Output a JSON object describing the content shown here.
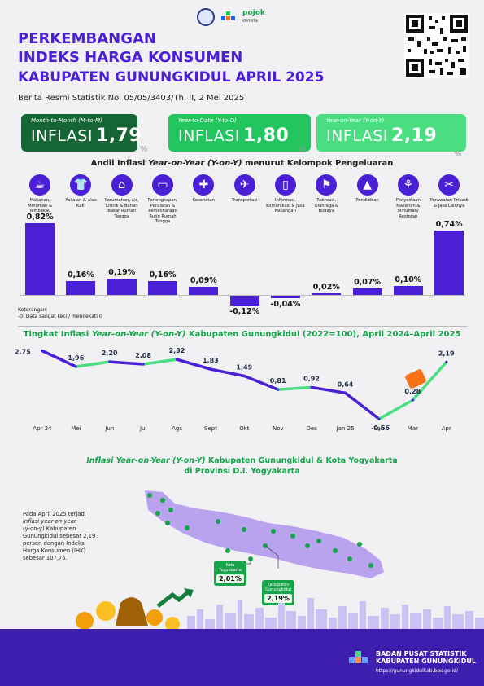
{
  "header": {
    "title_line1": "PERKEMBANGAN",
    "title_line2": "INDEKS HARGA KONSUMEN",
    "title_line3": "KABUPATEN GUNUNGKIDUL APRIL 2025",
    "subline": "Berita Resmi Statistik No. 05/05/3403/Th. II, 2 Mei 2025",
    "logo_pojok": "pojok",
    "logo_pojok_sub": "STATISTIK"
  },
  "cards": [
    {
      "caption": "Month-to-Month (M-to-M)",
      "word": "INFLASI",
      "value": "1,79",
      "color": "#166534"
    },
    {
      "caption": "Year-to-Date (Y-to-D)",
      "word": "INFLASI",
      "value": "1,80",
      "color": "#22c55e"
    },
    {
      "caption": "Year-on-Year (Y-on-Y)",
      "word": "INFLASI",
      "value": "2,19",
      "color": "#4ade80"
    }
  ],
  "pct_sign": "%",
  "andil": {
    "title_pre": "Andil Inflasi ",
    "title_italic": "Year-on-Year (Y-on-Y)",
    "title_post": " menurut Kelompok Pengeluaran",
    "note_line1": "Keterangan:",
    "note_line2": "-0: Data sangat kecil/ mendekati 0",
    "chart_data": {
      "type": "bar",
      "categories": [
        "Makanan, Minuman & Tembakau",
        "Pakaian & Alas Kaki",
        "Perumahan, Air, Listrik & Bahan Bakar Rumah Tangga",
        "Perlengkapan, Peralatan & Pemeliharaan Rutin Rumah Tangga",
        "Kesehatan",
        "Transportasi",
        "Informasi, Komunikasi & Jasa Keuangan",
        "Rekreasi, Olahraga & Budaya",
        "Pendidikan",
        "Penyediaan Makanan & Minuman/ Restoran",
        "Perawatan Pribadi & Jasa Lainnya"
      ],
      "labels": [
        "0,82%",
        "0,16%",
        "0,19%",
        "0,16%",
        "0,09%",
        "-0,12%",
        "-0,04%",
        "0,02%",
        "0,07%",
        "0,10%",
        "0,74%"
      ],
      "values": [
        0.82,
        0.16,
        0.19,
        0.16,
        0.09,
        -0.12,
        -0.04,
        0.02,
        0.07,
        0.1,
        0.74
      ],
      "icons": [
        "food-icon",
        "shirt-icon",
        "house-icon",
        "sofa-icon",
        "medicine-icon",
        "airplane-icon",
        "phone-icon",
        "runner-icon",
        "graduation-cap-icon",
        "restaurant-icon",
        "scissors-icon"
      ]
    }
  },
  "trend": {
    "title_pre": "Tingkat Inflasi ",
    "title_italic": "Year-on-Year (Y-on-Y)",
    "title_post": " Kabupaten Gunungkidul (2022=100), April 2024–April 2025",
    "chart_data": {
      "type": "line",
      "x": [
        "Apr 24",
        "Mei",
        "Jun",
        "Jul",
        "Ags",
        "Sept",
        "Okt",
        "Nov",
        "Des",
        "Jan 25",
        "Feb",
        "Mar",
        "Apr"
      ],
      "y": [
        2.75,
        1.96,
        2.2,
        2.08,
        2.32,
        1.83,
        1.49,
        0.81,
        0.92,
        0.64,
        -0.66,
        0.28,
        2.19
      ],
      "labels": [
        "2,75",
        "1,96",
        "2,20",
        "2,08",
        "2,32",
        "1,83",
        "1,49",
        "0,81",
        "0,92",
        "0,64",
        "-0,66",
        "0,28",
        "2,19"
      ]
    }
  },
  "map": {
    "title_line1_italic": "Inflasi Year-on-Year (Y-on-Y)",
    "title_line1_post": " Kabupaten Gunungkidul & Kota Yogyakarta",
    "title_line2": "di Provinsi D.I. Yogyakarta",
    "para_1": "Pada April 2025 terjadi",
    "para_2": "inflasi year-on-year",
    "para_3": "(y-on-y) Kabupaten",
    "para_4": "Gunungkidul sebesar 2,19",
    "para_5": "persen dengan Indeks",
    "para_6": "Harga Konsumen (IHK)",
    "para_7": "sebesar 107,75.",
    "tag1_name": "Kota Yogyakarta",
    "tag1_value": "2,01%",
    "tag2_name": "Kabupaten Gunungkidul",
    "tag2_value": "2,19%"
  },
  "footer": {
    "line1": "BADAN PUSAT STATISTIK",
    "line2": "KABUPATEN GUNUNGKIDUL",
    "url": "https://gunungkidulkab.bps.go.id/"
  }
}
